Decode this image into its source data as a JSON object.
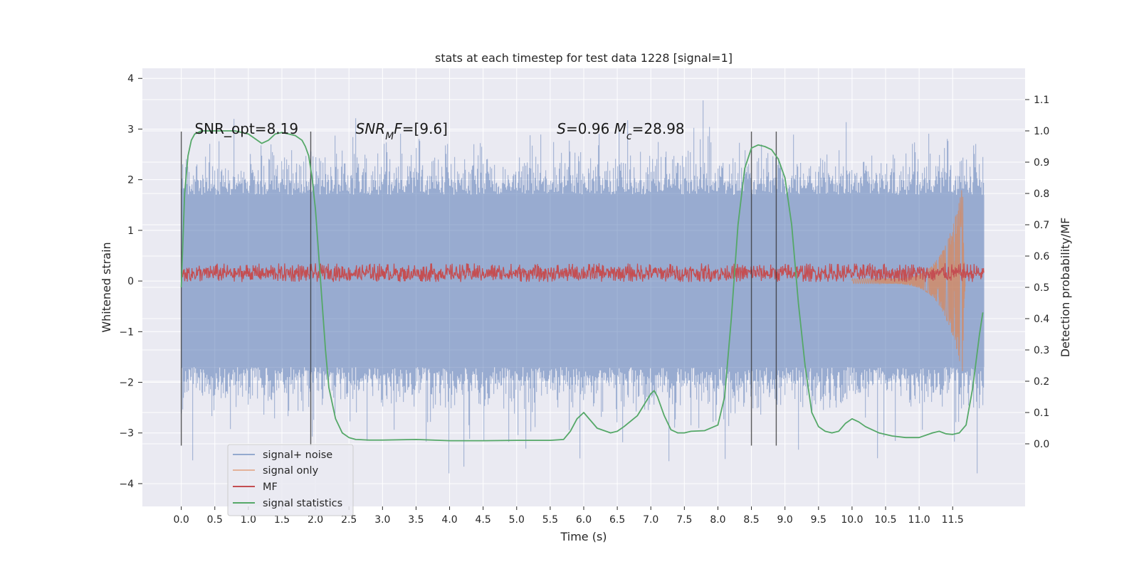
{
  "chart_data": {
    "type": "line",
    "title": "stats at each timestep for test data 1228 [signal=1]",
    "xlabel": "Time (s)",
    "ylabel": "Whitened strain",
    "y2label": "Detection probability/MF",
    "xlim": [
      -0.58,
      12.58
    ],
    "ylim": [
      -4.45,
      4.2
    ],
    "y2lim": [
      -0.2,
      1.2
    ],
    "x_ticks": [
      0.0,
      0.5,
      1.0,
      1.5,
      2.0,
      2.5,
      3.0,
      3.5,
      4.0,
      4.5,
      5.0,
      5.5,
      6.0,
      6.5,
      7.0,
      7.5,
      8.0,
      8.5,
      9.0,
      9.5,
      10.0,
      10.5,
      11.0,
      11.5
    ],
    "x_tick_labels": [
      "0.0",
      "0.5",
      "1.0",
      "1.5",
      "2.0",
      "2.5",
      "3.0",
      "3.5",
      "4.0",
      "4.5",
      "5.0",
      "5.5",
      "6.0",
      "6.5",
      "7.0",
      "7.5",
      "8.0",
      "8.5",
      "9.0",
      "9.5",
      "10.0",
      "10.5",
      "11.0",
      "11.5"
    ],
    "y_ticks": [
      4,
      3,
      2,
      1,
      0,
      -1,
      -2,
      -3,
      -4
    ],
    "y_tick_labels": [
      "4",
      "3",
      "2",
      "1",
      "0",
      "−1",
      "−2",
      "−3",
      "−4"
    ],
    "y2_ticks": [
      1.1,
      1.0,
      0.9,
      0.8,
      0.7,
      0.6,
      0.5,
      0.4,
      0.3,
      0.2,
      0.1,
      0.0
    ],
    "y2_tick_labels": [
      "1.1",
      "1.0",
      "0.9",
      "0.8",
      "0.7",
      "0.6",
      "0.5",
      "0.4",
      "0.3",
      "0.2",
      "0.1",
      "0.0"
    ],
    "grid": true,
    "series": [
      {
        "name": "signal+ noise",
        "color": "#4c72b0",
        "kind": "noise",
        "x_range": [
          0.0,
          11.97
        ],
        "typical_amplitude": 1.7,
        "max_amplitude": 3.7
      },
      {
        "name": "signal only",
        "color": "#dd8452",
        "kind": "chirp",
        "merger_time": 11.65,
        "peak": 1.9
      },
      {
        "name": "MF",
        "color": "#c44e52",
        "kind": "band",
        "x_range": [
          0.0,
          11.97
        ],
        "center": 0.12,
        "band": [
          -0.02,
          0.35
        ]
      },
      {
        "name": "signal statistics",
        "color": "#55a868",
        "axis": "right",
        "x": [
          0.0,
          0.05,
          0.1,
          0.15,
          0.2,
          0.3,
          0.5,
          0.8,
          1.0,
          1.1,
          1.2,
          1.3,
          1.4,
          1.5,
          1.6,
          1.7,
          1.8,
          1.85,
          1.9,
          1.95,
          2.0,
          2.05,
          2.1,
          2.15,
          2.2,
          2.3,
          2.4,
          2.5,
          2.6,
          2.8,
          3.0,
          3.5,
          4.0,
          4.5,
          5.0,
          5.5,
          5.7,
          5.8,
          5.9,
          6.0,
          6.1,
          6.2,
          6.4,
          6.5,
          6.6,
          6.8,
          7.0,
          7.05,
          7.1,
          7.2,
          7.3,
          7.4,
          7.5,
          7.6,
          7.8,
          8.0,
          8.1,
          8.2,
          8.3,
          8.4,
          8.5,
          8.6,
          8.7,
          8.8,
          8.9,
          9.0,
          9.1,
          9.2,
          9.3,
          9.4,
          9.5,
          9.6,
          9.7,
          9.8,
          9.9,
          10.0,
          10.1,
          10.2,
          10.4,
          10.6,
          10.8,
          11.0,
          11.2,
          11.3,
          11.4,
          11.5,
          11.6,
          11.7,
          11.8,
          11.9,
          11.95
        ],
        "y": [
          0.5,
          0.8,
          0.92,
          0.97,
          0.99,
          1.0,
          1.0,
          1.0,
          0.99,
          0.975,
          0.96,
          0.97,
          0.99,
          0.995,
          0.99,
          0.985,
          0.97,
          0.95,
          0.92,
          0.85,
          0.75,
          0.6,
          0.45,
          0.3,
          0.18,
          0.08,
          0.035,
          0.02,
          0.014,
          0.012,
          0.012,
          0.014,
          0.01,
          0.01,
          0.011,
          0.011,
          0.014,
          0.04,
          0.08,
          0.1,
          0.075,
          0.05,
          0.035,
          0.04,
          0.055,
          0.09,
          0.16,
          0.17,
          0.15,
          0.09,
          0.045,
          0.035,
          0.035,
          0.04,
          0.042,
          0.06,
          0.15,
          0.4,
          0.7,
          0.88,
          0.945,
          0.955,
          0.95,
          0.94,
          0.91,
          0.85,
          0.7,
          0.45,
          0.25,
          0.1,
          0.055,
          0.04,
          0.035,
          0.04,
          0.065,
          0.08,
          0.07,
          0.055,
          0.035,
          0.025,
          0.02,
          0.02,
          0.035,
          0.04,
          0.032,
          0.03,
          0.035,
          0.06,
          0.18,
          0.35,
          0.42
        ]
      }
    ],
    "vertical_lines": [
      0.0,
      1.93,
      8.5,
      8.87
    ],
    "vertical_line_range": [
      -3.25,
      2.95
    ],
    "annotations": [
      {
        "x": 0.2,
        "y": 2.95,
        "parts": [
          {
            "t": "SNR_opt=8.19"
          }
        ]
      },
      {
        "x": 2.6,
        "y": 2.95,
        "parts": [
          {
            "t": "SNR",
            "i": true
          },
          {
            "t": "M",
            "i": true,
            "sub": true
          },
          {
            "t": "F",
            "i": true
          },
          {
            "t": "=[9.6]"
          }
        ]
      },
      {
        "x": 5.6,
        "y": 2.95,
        "parts": [
          {
            "t": "S",
            "i": true
          },
          {
            "t": "=0.96   "
          },
          {
            "t": "M",
            "i": true
          },
          {
            "t": "c",
            "i": true,
            "sub": true
          },
          {
            "t": "=28.98"
          }
        ]
      }
    ],
    "legend": {
      "position": "lower-left",
      "entries": [
        "signal+ noise",
        "signal only",
        "MF",
        "signal statistics"
      ]
    }
  }
}
